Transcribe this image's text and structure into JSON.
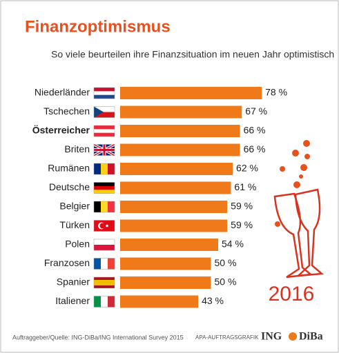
{
  "chart_data": {
    "type": "bar",
    "orientation": "horizontal",
    "title": "Finanzoptimismus",
    "subtitle": "So viele beurteilen ihre Finanzsituation im neuen Jahr optimistisch",
    "categories": [
      "Niederländer",
      "Tschechen",
      "Österreicher",
      "Briten",
      "Rumänen",
      "Deutsche",
      "Belgier",
      "Türken",
      "Polen",
      "Franzosen",
      "Spanier",
      "Italiener"
    ],
    "values": [
      78,
      67,
      66,
      66,
      62,
      61,
      59,
      59,
      54,
      50,
      50,
      43
    ],
    "value_labels": [
      "78 %",
      "67 %",
      "66 %",
      "66 %",
      "62 %",
      "61 %",
      "59 %",
      "59 %",
      "54 %",
      "50 %",
      "50 %",
      "43 %"
    ],
    "color": "#f07a1a",
    "year": "2016",
    "source": "Auftraggeber/Quelle: ING-DiBa/ING International Survey 2015",
    "credit": "APA-AUFTRAGSGRAFIK",
    "logo": [
      "ING",
      "DiBa"
    ]
  }
}
